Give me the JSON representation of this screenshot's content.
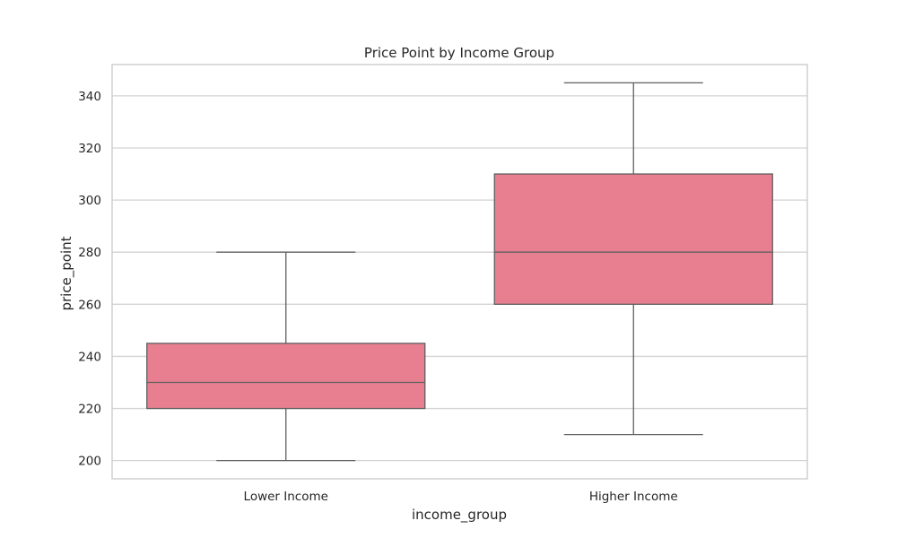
{
  "chart_data": {
    "type": "box",
    "title": "Price Point by Income Group",
    "xlabel": "income_group",
    "ylabel": "price_point",
    "ylim": [
      193,
      352
    ],
    "yticks": [
      200,
      220,
      240,
      260,
      280,
      300,
      320,
      340
    ],
    "grid": true,
    "grid_axis": "y",
    "legend": "none",
    "categories": [
      "Lower Income",
      "Higher Income"
    ],
    "boxes": [
      {
        "category": "Lower Income",
        "whisker_low": 200,
        "q1": 220,
        "median": 230,
        "q3": 245,
        "whisker_high": 280
      },
      {
        "category": "Higher Income",
        "whisker_low": 210,
        "q1": 260,
        "median": 280,
        "q3": 310,
        "whisker_high": 345
      }
    ],
    "colors": {
      "box_fill": "#e77f91",
      "box_edge": "#5f5f5f",
      "grid": "#d3d3d3",
      "frame": "#cccccc",
      "text": "#262626"
    }
  }
}
